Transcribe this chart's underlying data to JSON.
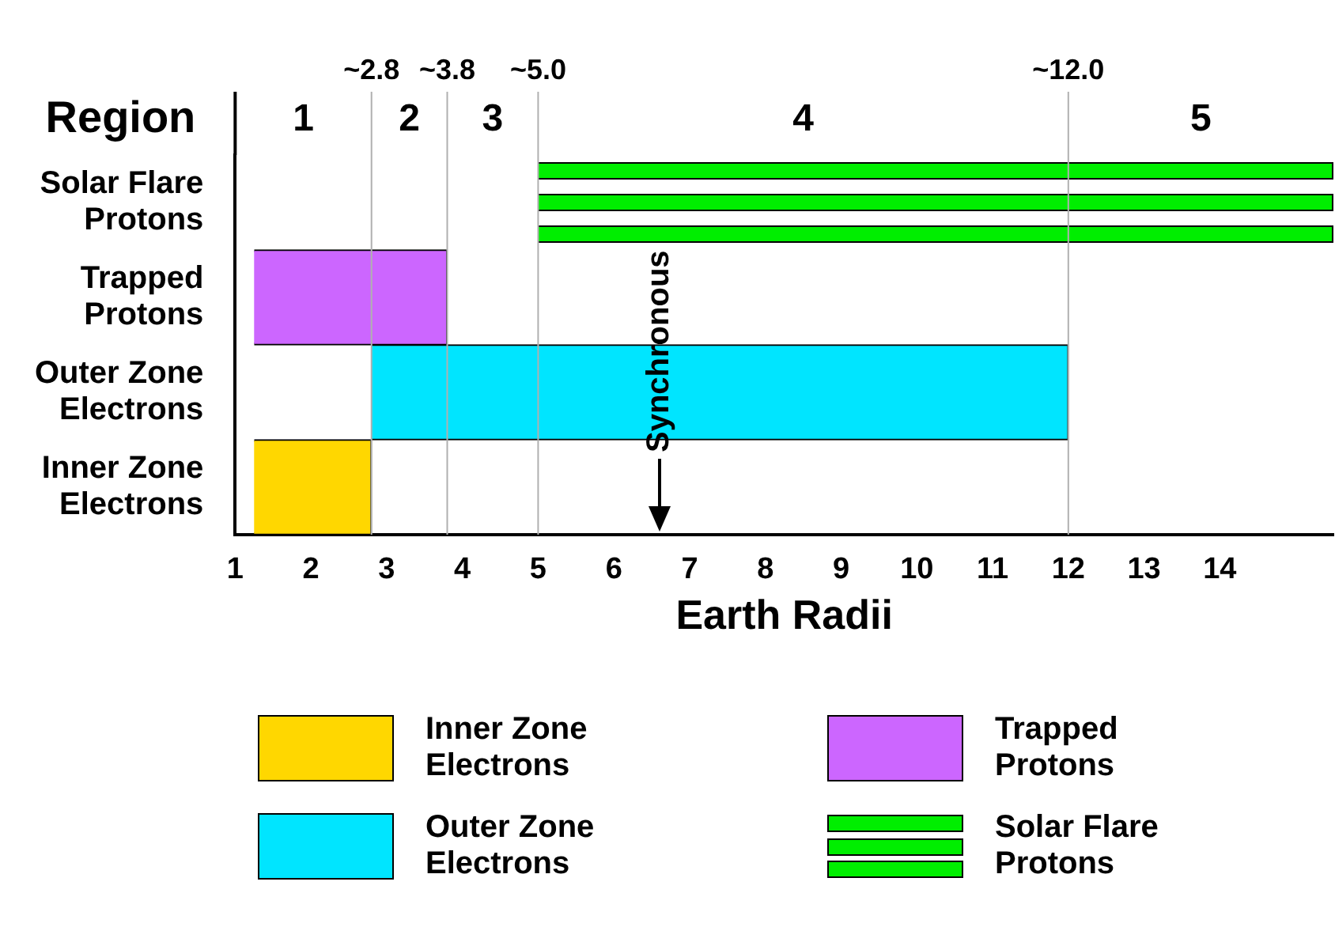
{
  "chart_data": {
    "type": "bar",
    "orientation": "horizontal",
    "xlabel": "Earth Radii",
    "categories": [
      "Solar Flare Protons",
      "Trapped Protons",
      "Outer Zone Electrons",
      "Inner Zone Electrons"
    ],
    "series": [
      {
        "name": "Inner Zone Electrons",
        "color": "#ffd700",
        "values": [
          null,
          null,
          null,
          1.55
        ],
        "base": [
          null,
          null,
          null,
          1.25
        ]
      },
      {
        "name": "Trapped Protons",
        "color": "#cc66ff",
        "values": [
          null,
          2.55,
          null,
          null
        ],
        "base": [
          null,
          1.25,
          null,
          null
        ]
      },
      {
        "name": "Outer Zone Electrons",
        "color": "#00e5ff",
        "values": [
          null,
          null,
          9.2,
          null
        ],
        "base": [
          null,
          null,
          2.8,
          null
        ]
      },
      {
        "name": "Solar Flare Protons",
        "color": "#00ee00",
        "values": [
          10.5,
          null,
          null,
          null
        ],
        "base": [
          5,
          null,
          null,
          null
        ]
      },
      {
        "color": "#00ee00",
        "values": [
          10.5,
          null,
          null,
          null
        ],
        "base": [
          5,
          null,
          null,
          null
        ]
      },
      {
        "color": "#00ee00",
        "values": [
          10.5,
          null,
          null,
          null
        ],
        "base": [
          5,
          null,
          null,
          null
        ]
      }
    ],
    "xlim": [
      1,
      15.5
    ],
    "xticks": [
      1,
      2,
      3,
      4,
      5,
      6,
      7,
      8,
      9,
      10,
      11,
      12,
      13,
      14
    ],
    "ref_lines": [
      {
        "axis": "x",
        "value": 2.8,
        "label": "~2.8",
        "color": "#b0b0b0"
      },
      {
        "axis": "x",
        "value": 3.8,
        "label": "~3.8",
        "color": "#b0b0b0"
      },
      {
        "axis": "x",
        "value": 5.0,
        "label": "~5.0",
        "color": "#b0b0b0"
      },
      {
        "axis": "x",
        "value": 12.0,
        "label": "~12.0",
        "color": "#b0b0b0"
      },
      {
        "axis": "x",
        "value": 6.6,
        "label": "Synchronous",
        "color": "#000000",
        "line_style": "solid"
      }
    ],
    "annotations": [
      "Region",
      "1",
      "2",
      "3",
      "4",
      "5"
    ],
    "grid": false,
    "legend": "bottom"
  }
}
